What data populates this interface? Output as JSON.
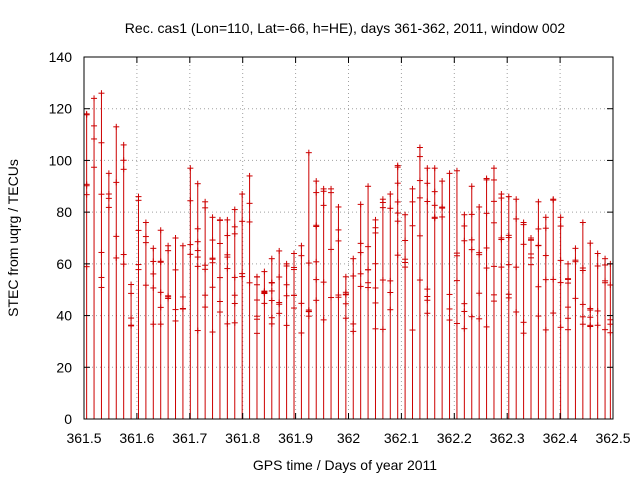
{
  "chart_data": {
    "type": "line",
    "title": "Rec. cas1 (Lon=110, Lat=-66, h=HE), days 361-362, 2011, window 002",
    "xlabel": "GPS time / Days of year 2011",
    "ylabel": "STEC from uqrg / TECUs",
    "xlim": [
      361.5,
      362.5
    ],
    "ylim": [
      0,
      140
    ],
    "xticks": [
      "361.5",
      "361.6",
      "361.7",
      "361.8",
      "361.9",
      "362",
      "362.1",
      "362.2",
      "362.3",
      "362.4",
      "362.5"
    ],
    "yticks": [
      "0",
      "20",
      "40",
      "60",
      "80",
      "100",
      "120",
      "140"
    ],
    "grid": true,
    "color": "#cc0000",
    "style": "impulses with cross markers",
    "series": [
      {
        "name": "STEC",
        "x": [
          361.505,
          361.519,
          361.533,
          361.547,
          361.561,
          361.575,
          361.589,
          361.603,
          361.617,
          361.631,
          361.645,
          361.659,
          361.673,
          361.687,
          361.701,
          361.715,
          361.729,
          361.743,
          361.757,
          361.771,
          361.785,
          361.799,
          361.813,
          361.827,
          361.841,
          361.855,
          361.869,
          361.883,
          361.897,
          361.911,
          361.925,
          361.939,
          361.953,
          361.967,
          361.981,
          361.995,
          362.009,
          362.023,
          362.037,
          362.051,
          362.065,
          362.079,
          362.093,
          362.107,
          362.121,
          362.135,
          362.149,
          362.163,
          362.177,
          362.191,
          362.205,
          362.219,
          362.233,
          362.247,
          362.261,
          362.275,
          362.289,
          362.303,
          362.317,
          362.331,
          362.345,
          362.359,
          362.373,
          362.387,
          362.401,
          362.415,
          362.429,
          362.443,
          362.457,
          362.471,
          362.485,
          362.495
        ],
        "values": [
          118,
          124,
          126,
          95,
          113,
          106,
          52,
          86,
          76,
          66,
          73,
          67,
          70,
          67,
          97,
          91,
          84,
          78,
          77,
          77,
          81,
          87,
          94,
          55,
          57,
          62,
          65,
          60,
          64,
          67,
          103,
          92,
          89,
          89,
          82,
          55,
          62,
          83,
          90,
          77,
          85,
          87,
          98,
          79,
          89,
          105,
          97,
          97,
          92,
          95,
          96,
          79,
          90,
          82,
          93,
          97,
          87,
          86,
          85,
          76,
          70,
          84,
          78,
          85,
          78,
          60,
          66,
          76,
          68,
          64,
          62,
          60
        ]
      }
    ]
  }
}
